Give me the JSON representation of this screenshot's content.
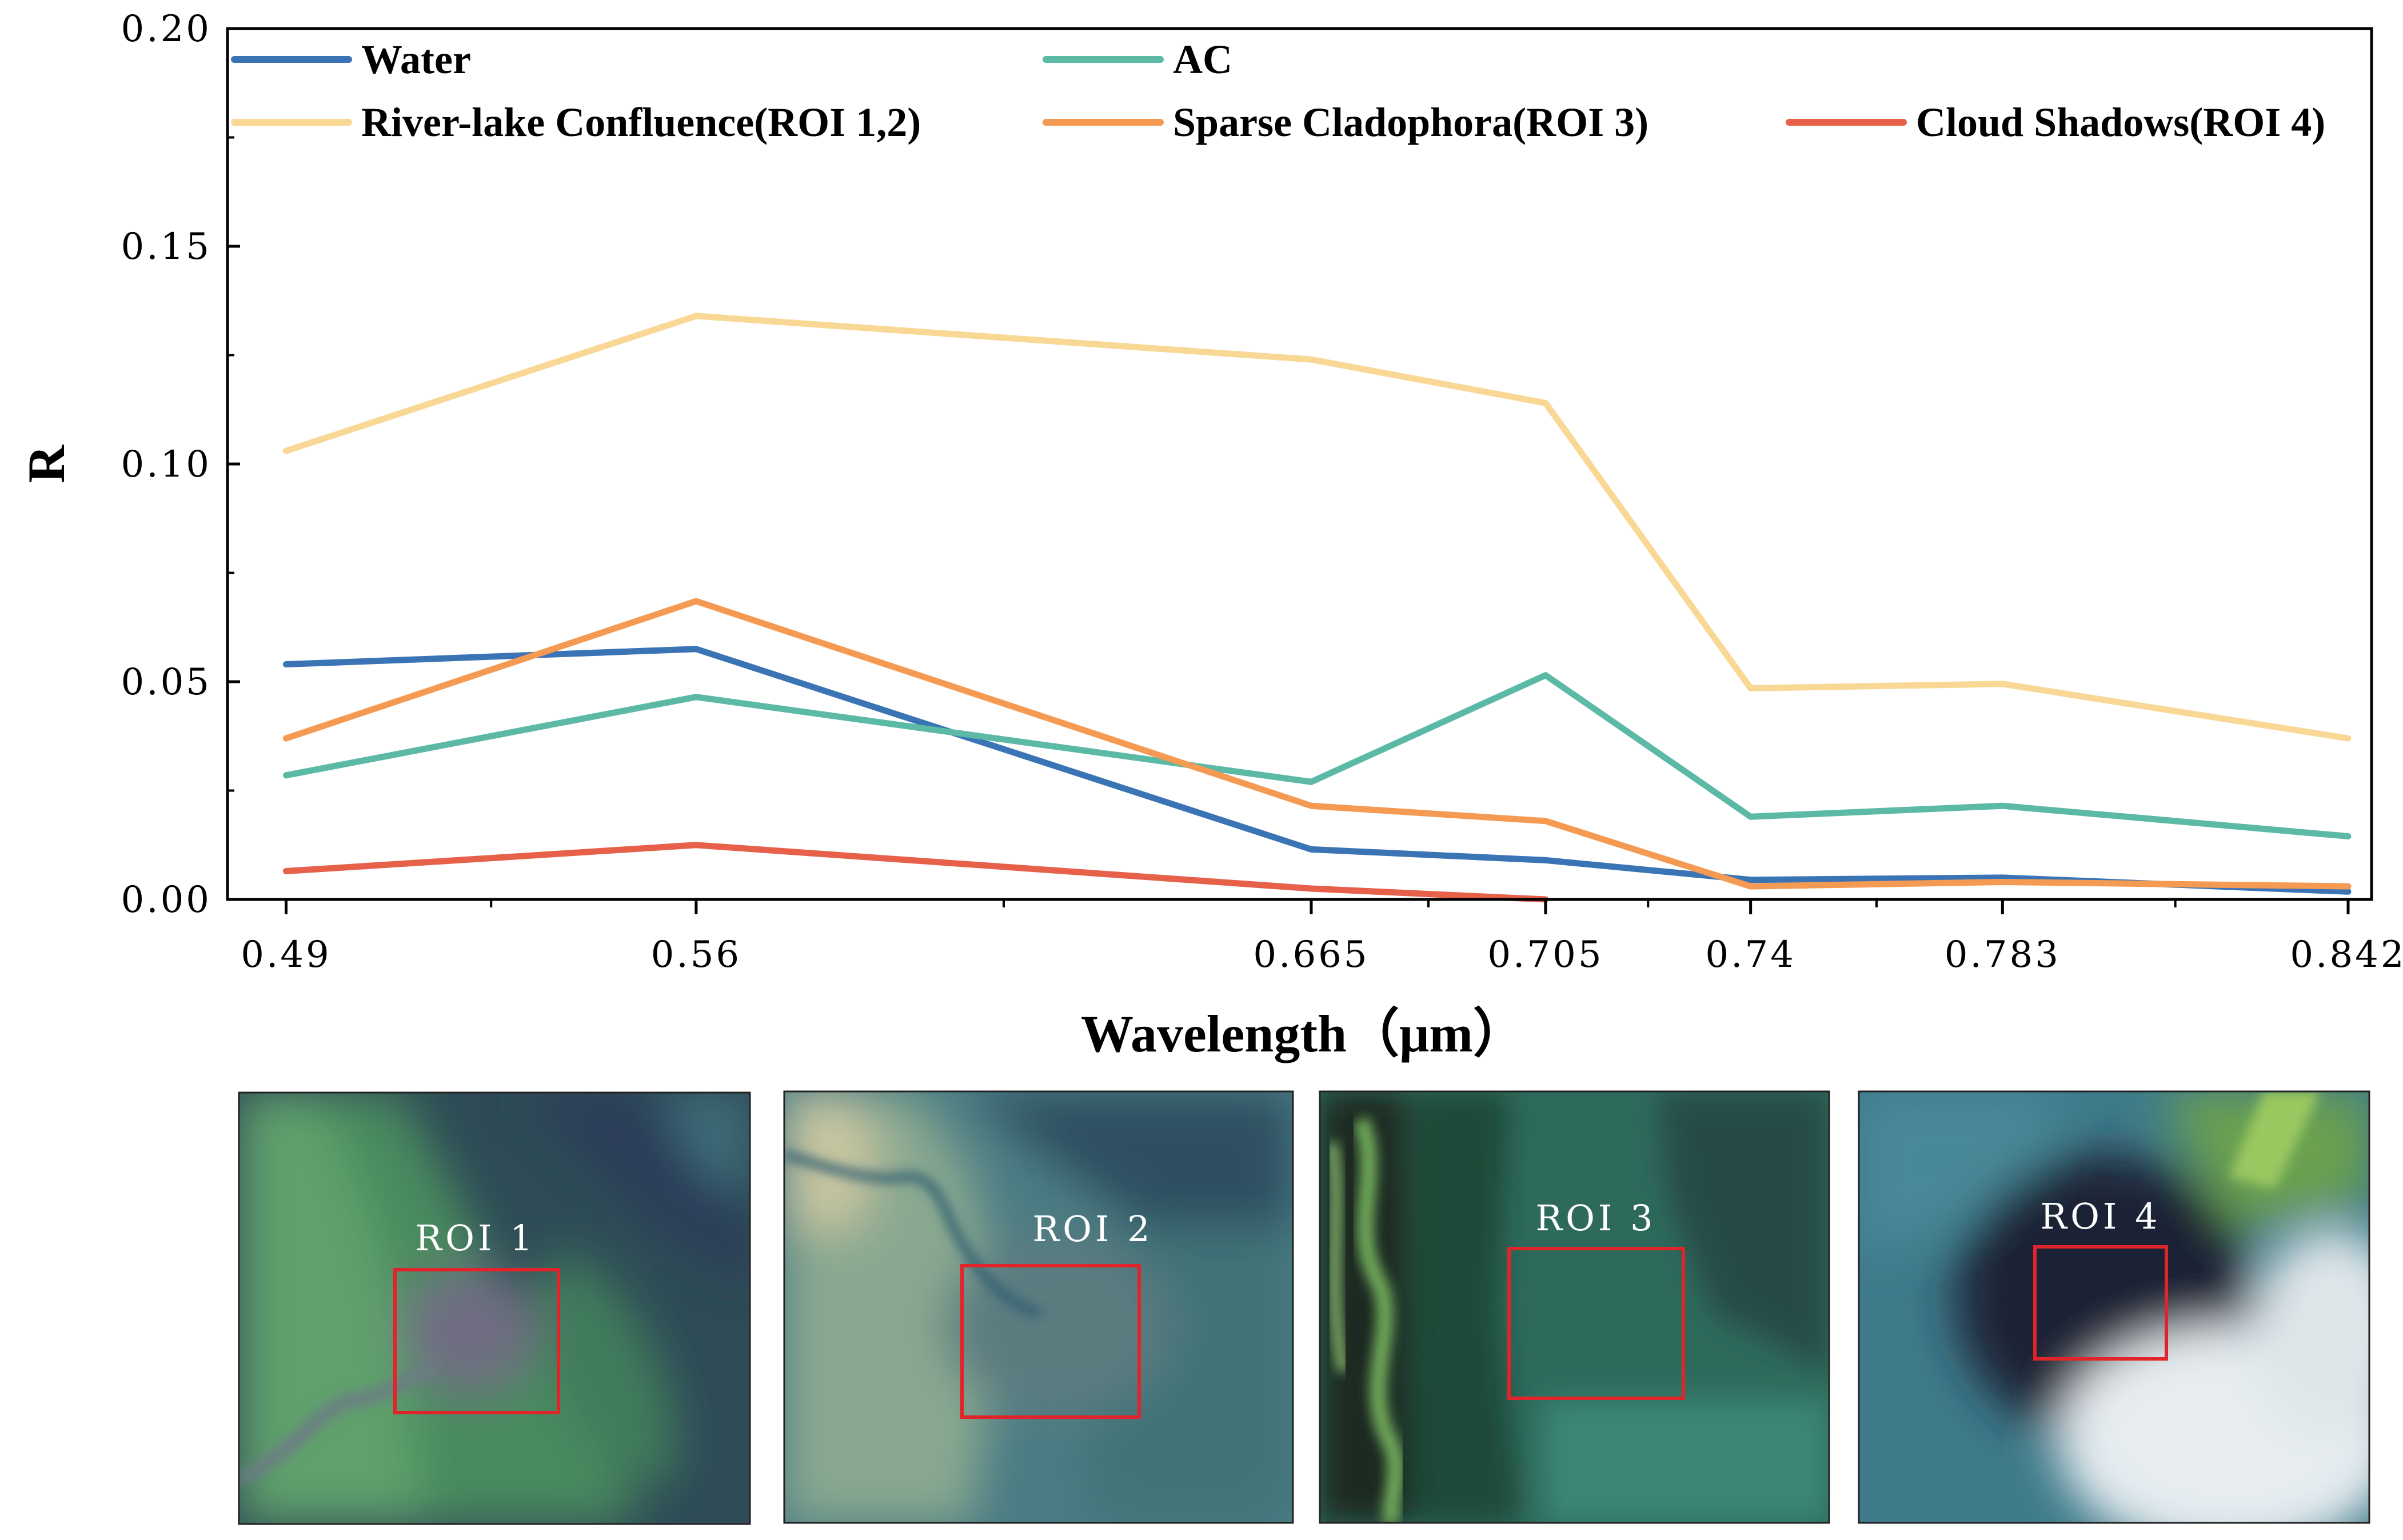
{
  "chart_data": {
    "type": "line",
    "title": "",
    "xlabel": "Wavelength（μm）",
    "ylabel": "R",
    "x": [
      0.49,
      0.56,
      0.665,
      0.705,
      0.74,
      0.783,
      0.842
    ],
    "x_tick_labels": [
      "0.49",
      "0.56",
      "0.665",
      "0.705",
      "0.74",
      "0.783",
      "0.842"
    ],
    "y_tick_labels": [
      "0.00",
      "0.05",
      "0.10",
      "0.15",
      "0.20"
    ],
    "y_ticks": [
      0.0,
      0.05,
      0.1,
      0.15,
      0.2
    ],
    "ylim": [
      0,
      0.2
    ],
    "xlim": [
      0.48,
      0.846
    ],
    "grid": false,
    "legend_position": "top",
    "series": [
      {
        "name": "Water",
        "color": "#3B74B5",
        "values": [
          0.054,
          0.0575,
          0.0115,
          0.009,
          0.0045,
          0.005,
          0.0018
        ]
      },
      {
        "name": "AC",
        "color": "#5BB9A5",
        "values": [
          0.0285,
          0.0465,
          0.027,
          0.0515,
          0.019,
          0.0215,
          0.0145
        ]
      },
      {
        "name": "River-lake Confluence(ROI 1,2)",
        "color": "#F9D794",
        "values": [
          0.103,
          0.134,
          0.124,
          0.114,
          0.0485,
          0.0495,
          0.037
        ]
      },
      {
        "name": "Sparse Cladophora(ROI 3)",
        "color": "#F59A52",
        "values": [
          0.037,
          0.0685,
          0.0215,
          0.018,
          0.003,
          0.004,
          0.003
        ]
      },
      {
        "name": "Cloud Shadows(ROI 4)",
        "color": "#E6604A",
        "values": [
          0.0065,
          0.0125,
          0.0025,
          0.0,
          null,
          null,
          null
        ]
      }
    ]
  },
  "roi_panels": [
    {
      "label": "ROI 1"
    },
    {
      "label": "ROI 2"
    },
    {
      "label": "ROI 3"
    },
    {
      "label": "ROI 4"
    }
  ],
  "colors": {
    "roi_box": "#E0242A"
  }
}
